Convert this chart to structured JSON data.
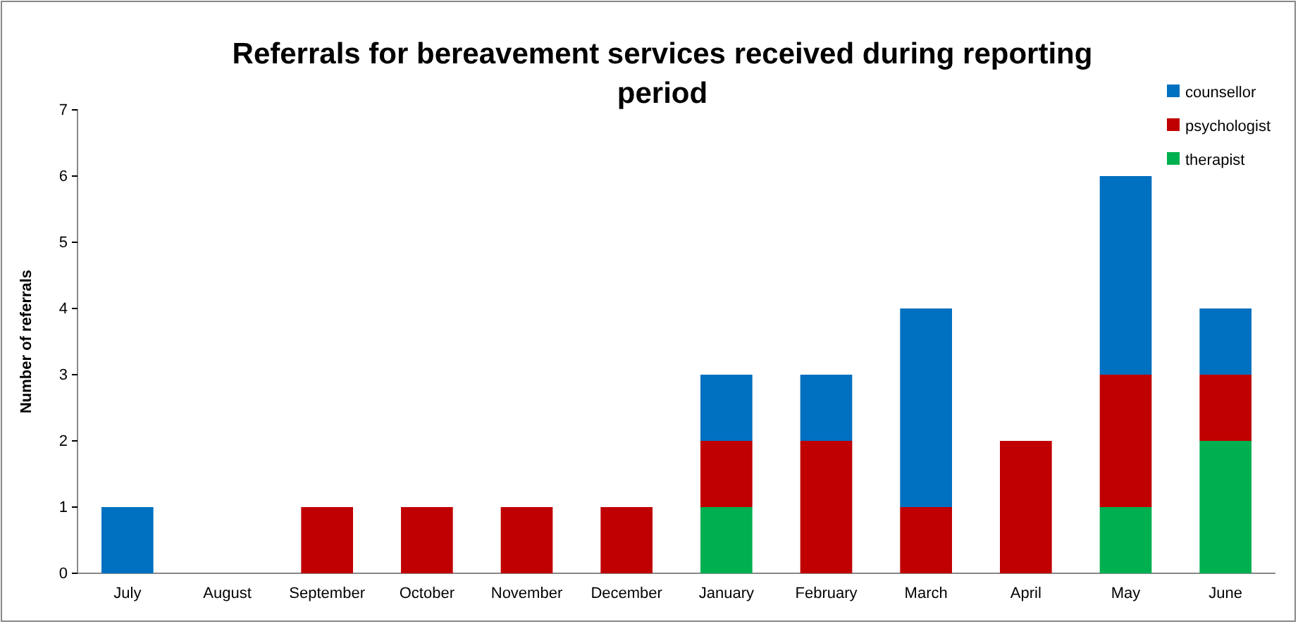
{
  "chart_data": {
    "type": "bar",
    "title": "Referrals for bereavement services received during reporting period",
    "ylabel": "Number of referrals",
    "categories": [
      "July",
      "August",
      "September",
      "October",
      "November",
      "December",
      "January",
      "February",
      "March",
      "April",
      "May",
      "June"
    ],
    "stacked": true,
    "ylim": [
      0,
      7
    ],
    "yticks": [
      0,
      1,
      2,
      3,
      4,
      5,
      6,
      7
    ],
    "legend": "top right",
    "grid": false,
    "series": [
      {
        "name": "therapist",
        "color": "#00b050",
        "values": [
          0,
          0,
          0,
          0,
          0,
          0,
          1,
          0,
          0,
          0,
          1,
          2
        ]
      },
      {
        "name": "psychologist",
        "color": "#c00000",
        "values": [
          0,
          0,
          1,
          1,
          1,
          1,
          1,
          2,
          1,
          2,
          2,
          1
        ]
      },
      {
        "name": "counsellor",
        "color": "#0070c0",
        "values": [
          1,
          0,
          0,
          0,
          0,
          0,
          1,
          1,
          3,
          0,
          3,
          1
        ]
      }
    ]
  }
}
